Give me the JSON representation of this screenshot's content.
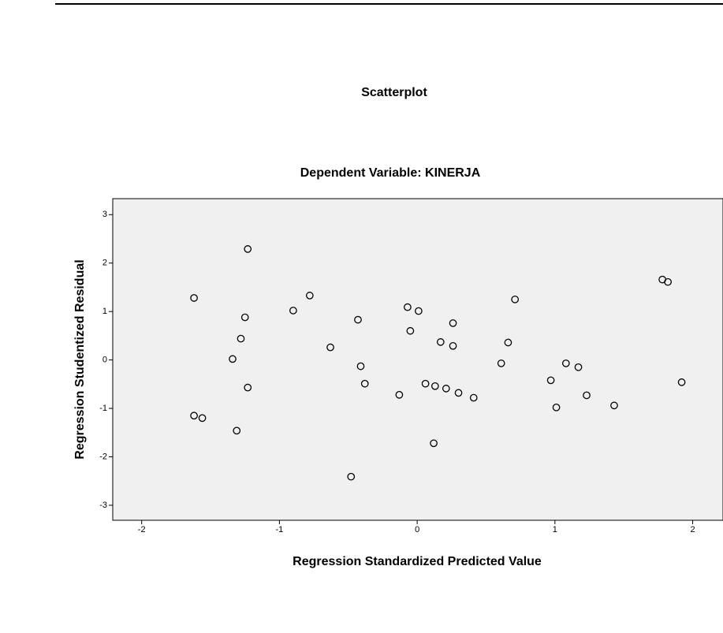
{
  "chart_data": {
    "type": "scatter",
    "title": "Scatterplot",
    "subtitle": "Dependent Variable: KINERJA",
    "x_label": "Regression Standardized Predicted Value",
    "y_label": "Regression Studentized Residual",
    "xlim": [
      -2.21,
      2.22
    ],
    "ylim": [
      -3.31,
      3.33
    ],
    "xticks": [
      -2,
      -1,
      0,
      1,
      2
    ],
    "yticks": [
      -3,
      -2,
      -1,
      0,
      1,
      2,
      3
    ],
    "background": "#f0f0f0",
    "marker_color": "#000000",
    "x": [
      -1.62,
      -1.23,
      -1.62,
      -1.56,
      -1.31,
      -1.34,
      -1.28,
      -1.25,
      -1.23,
      -0.9,
      -0.78,
      -0.63,
      -0.43,
      -0.41,
      -0.38,
      -0.48,
      -0.13,
      -0.07,
      0.01,
      -0.05,
      0.06,
      0.13,
      0.12,
      0.17,
      0.21,
      0.26,
      0.26,
      0.3,
      0.41,
      0.61,
      0.66,
      0.71,
      0.97,
      1.01,
      1.08,
      1.17,
      1.23,
      1.43,
      1.78,
      1.82,
      1.92
    ],
    "values": [
      1.28,
      2.29,
      -1.15,
      -1.2,
      -1.46,
      0.02,
      0.44,
      0.88,
      -0.57,
      1.02,
      1.33,
      0.26,
      0.83,
      -0.13,
      -0.49,
      -2.41,
      -0.72,
      1.09,
      1.01,
      0.6,
      -0.49,
      -0.54,
      -1.72,
      0.37,
      -0.59,
      0.29,
      0.76,
      -0.68,
      -0.78,
      -0.07,
      0.36,
      1.25,
      -0.42,
      -0.98,
      -0.07,
      -0.15,
      -0.73,
      -0.94,
      1.66,
      1.61,
      -0.46
    ]
  }
}
